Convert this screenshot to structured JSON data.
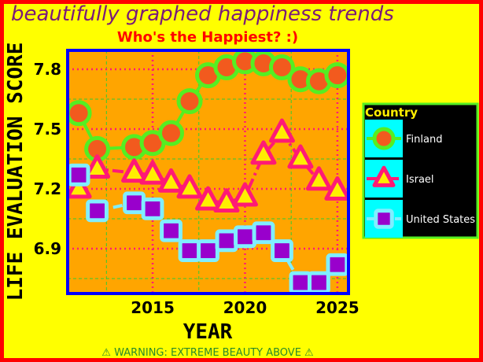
{
  "chart_data": {
    "type": "line",
    "title": "beautifully graphed happiness trends",
    "subtitle": "Who's the Happiest? :)",
    "xlabel": "YEAR",
    "ylabel": "LIFE EVALUATION SCORE",
    "footer": "⚠ WARNING: EXTREME BEAUTY ABOVE ⚠",
    "x": [
      2011,
      2012,
      2014,
      2015,
      2016,
      2017,
      2018,
      2019,
      2020,
      2021,
      2022,
      2023,
      2024,
      2025
    ],
    "series": [
      {
        "name": "Finland",
        "color": "#55ee22",
        "marker": "circle",
        "marker_color": "#f25a1e",
        "line_style": "solid",
        "values": [
          7.58,
          7.4,
          7.41,
          7.43,
          7.48,
          7.64,
          7.77,
          7.81,
          7.84,
          7.83,
          7.81,
          7.75,
          7.74,
          7.77
        ]
      },
      {
        "name": "Israel",
        "color": "#ff1a75",
        "marker": "triangle",
        "marker_color": "#ffee00",
        "line_style": "dashdot",
        "values": [
          7.2,
          7.3,
          7.28,
          7.27,
          7.23,
          7.2,
          7.14,
          7.13,
          7.16,
          7.37,
          7.48,
          7.35,
          7.24,
          7.19
        ]
      },
      {
        "name": "United States",
        "color": "#80eeff",
        "marker": "square",
        "marker_color": "#9900cc",
        "line_style": "dashed",
        "values": [
          7.27,
          7.09,
          7.13,
          7.1,
          6.99,
          6.89,
          6.89,
          6.94,
          6.96,
          6.98,
          6.89,
          6.73,
          6.73,
          6.82
        ]
      }
    ],
    "xlim": [
      2010.4,
      2025.6
    ],
    "xticks": [
      2015,
      2020,
      2025
    ],
    "xminorticks": [
      2012.5,
      2017.5,
      2022.5
    ],
    "ylim": [
      6.675,
      7.895
    ],
    "yticks": [
      6.9,
      7.2,
      7.5,
      7.8
    ],
    "yminorticks": [
      6.75,
      7.05,
      7.35,
      7.65
    ],
    "grid": true,
    "legend_title": "Country",
    "legend_position": "right"
  }
}
